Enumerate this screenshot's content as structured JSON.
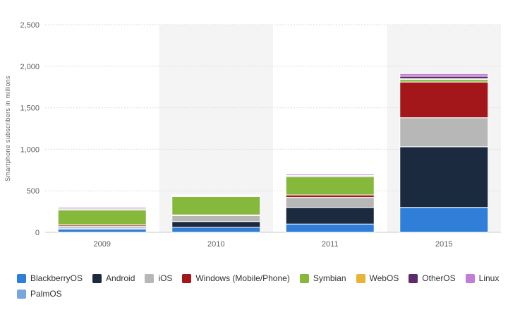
{
  "chart_data": {
    "type": "bar",
    "stacked": true,
    "categories": [
      "2009",
      "2010",
      "2011",
      "2015"
    ],
    "ylabel": "Smartphone subscribers in millions",
    "ylim": [
      0,
      2500
    ],
    "yticks": [
      0,
      500,
      1000,
      1500,
      2000,
      2500
    ],
    "ytick_labels": [
      "0",
      "500",
      "1,000",
      "1,500",
      "2,000",
      "2,500"
    ],
    "grid": true,
    "legend_position": "bottom",
    "series": [
      {
        "name": "BlackberryOS",
        "color": "#2f7ed8",
        "values": [
          40,
          60,
          100,
          300
        ]
      },
      {
        "name": "Android",
        "color": "#1b2a3f",
        "values": [
          10,
          70,
          200,
          730
        ]
      },
      {
        "name": "iOS",
        "color": "#b7b7b7",
        "values": [
          25,
          70,
          120,
          350
        ]
      },
      {
        "name": "Windows (Mobile/Phone)",
        "color": "#a3171a",
        "values": [
          15,
          10,
          30,
          430
        ]
      },
      {
        "name": "Symbian",
        "color": "#86b83c",
        "values": [
          180,
          220,
          220,
          30
        ]
      },
      {
        "name": "WebOS",
        "color": "#e8b436",
        "values": [
          3,
          4,
          4,
          10
        ]
      },
      {
        "name": "OtherOS",
        "color": "#5b2b6e",
        "values": [
          10,
          10,
          10,
          30
        ]
      },
      {
        "name": "Linux",
        "color": "#c07ed6",
        "values": [
          17,
          6,
          16,
          30
        ]
      },
      {
        "name": "PalmOS",
        "color": "#7aa6e0",
        "values": [
          0,
          0,
          0,
          0
        ]
      }
    ]
  }
}
